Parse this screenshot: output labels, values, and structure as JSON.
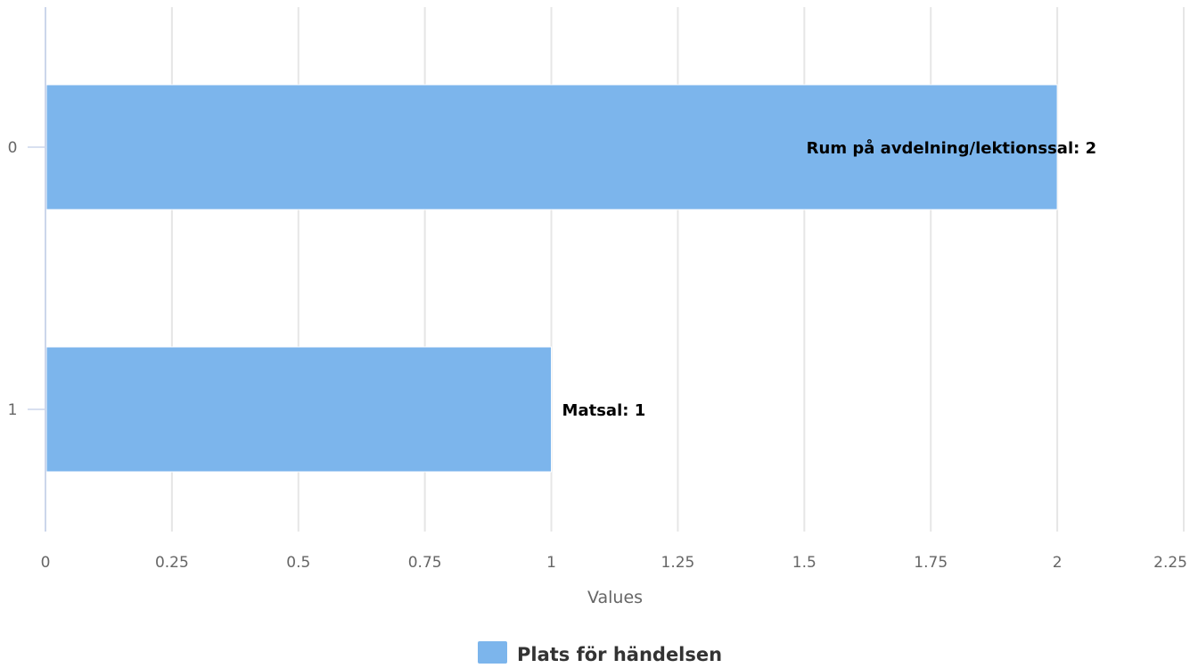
{
  "chart_data": {
    "type": "bar",
    "orientation": "horizontal",
    "categories": [
      "0",
      "1"
    ],
    "series": [
      {
        "name": "Plats för händelsen",
        "values": [
          2,
          1
        ],
        "color": "#7cb5ec",
        "data_labels": [
          "Rum på avdelning/lektionssal: 2",
          "Matsal: 1"
        ]
      }
    ],
    "xlabel": "Values",
    "ylabel": "",
    "xlim": [
      0,
      2.25
    ],
    "x_ticks": [
      "0",
      "0.25",
      "0.5",
      "0.75",
      "1",
      "1.25",
      "1.5",
      "1.75",
      "2",
      "2.25"
    ],
    "grid": true,
    "legend": "bottom-center",
    "colors": {
      "bar": "#7cb5ec",
      "grid": "#e6e6e6",
      "axis": "#ccd6eb",
      "tick_text": "#666666",
      "label_text": "#000000",
      "legend_text": "#333333"
    }
  }
}
